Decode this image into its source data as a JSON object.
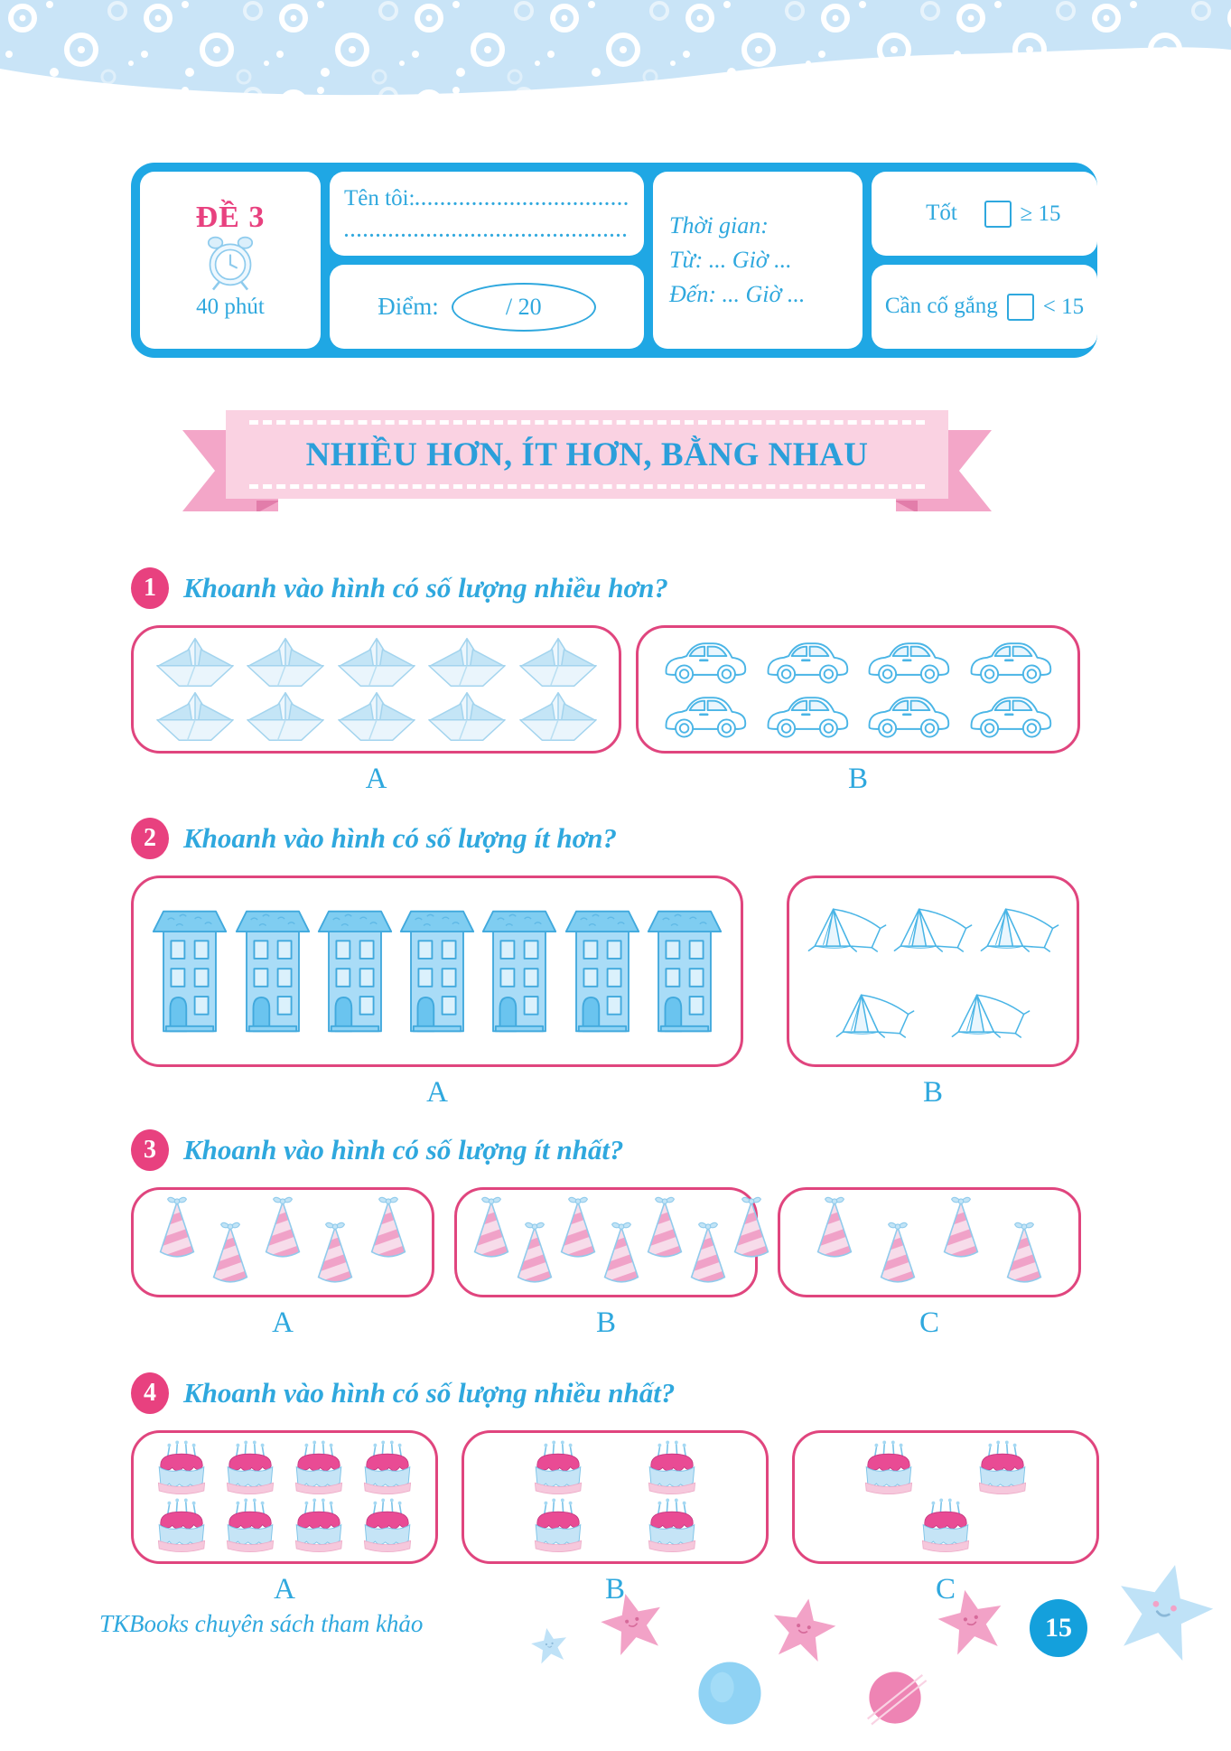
{
  "info_box": {
    "test_label": "ĐỀ 3",
    "clock_icon": "alarm-clock-icon",
    "duration": "40 phút",
    "name_label": "Tên tôi:",
    "name_dots_1": "....................................",
    "name_dots_2": "..............................................",
    "score_label": "Điểm:",
    "score_value": "/ 20",
    "time_label": "Thời gian:",
    "time_from": "Từ: ... Giờ ...",
    "time_to": "Đến: ... Giờ ...",
    "rating_good_label": "Tốt",
    "rating_good_condition": "≥ 15",
    "rating_effort_label": "Cần cố gắng",
    "rating_effort_condition": "< 15"
  },
  "banner": {
    "title": "NHIỀU HƠN, ÍT HƠN, BẰNG NHAU"
  },
  "questions": [
    {
      "number": "1",
      "text": "Khoanh vào hình có số lượng nhiều hơn?",
      "options": [
        {
          "label": "A",
          "icon": "paper-boat-icon",
          "item": "paper boat",
          "count": 10,
          "rows": [
            5,
            5
          ]
        },
        {
          "label": "B",
          "icon": "car-icon",
          "item": "car",
          "count": 8,
          "rows": [
            4,
            4
          ]
        }
      ]
    },
    {
      "number": "2",
      "text": "Khoanh vào hình có số lượng ít hơn?",
      "options": [
        {
          "label": "A",
          "icon": "building-icon",
          "item": "building",
          "count": 7,
          "rows": [
            7
          ]
        },
        {
          "label": "B",
          "icon": "tent-icon",
          "item": "tent",
          "count": 5,
          "rows": [
            3,
            2
          ]
        }
      ]
    },
    {
      "number": "3",
      "text": "Khoanh vào hình có số lượng ít nhất?",
      "options": [
        {
          "label": "A",
          "icon": "party-hat-icon",
          "item": "party hat",
          "count": 5,
          "rows": [
            5
          ]
        },
        {
          "label": "B",
          "icon": "party-hat-icon",
          "item": "party hat",
          "count": 7,
          "rows": [
            7
          ]
        },
        {
          "label": "C",
          "icon": "party-hat-icon",
          "item": "party hat",
          "count": 4,
          "rows": [
            4
          ]
        }
      ]
    },
    {
      "number": "4",
      "text": "Khoanh vào hình có số lượng nhiều nhất?",
      "options": [
        {
          "label": "A",
          "icon": "cake-icon",
          "item": "birthday cake",
          "count": 8,
          "rows": [
            4,
            4
          ]
        },
        {
          "label": "B",
          "icon": "cake-icon",
          "item": "birthday cake",
          "count": 4,
          "rows": [
            2,
            2
          ]
        },
        {
          "label": "C",
          "icon": "cake-icon",
          "item": "birthday cake",
          "count": 3,
          "rows": [
            2,
            1
          ]
        }
      ]
    }
  ],
  "footer": {
    "publisher": "TKBooks chuyên sách tham khảo",
    "page_number": "15"
  },
  "colors": {
    "accent_blue": "#2fa8de",
    "accent_pink": "#e8417f",
    "banner_pink": "#fad2e2",
    "ribbon_pink": "#f3a6c8",
    "band_blue": "#c9e4f7"
  }
}
